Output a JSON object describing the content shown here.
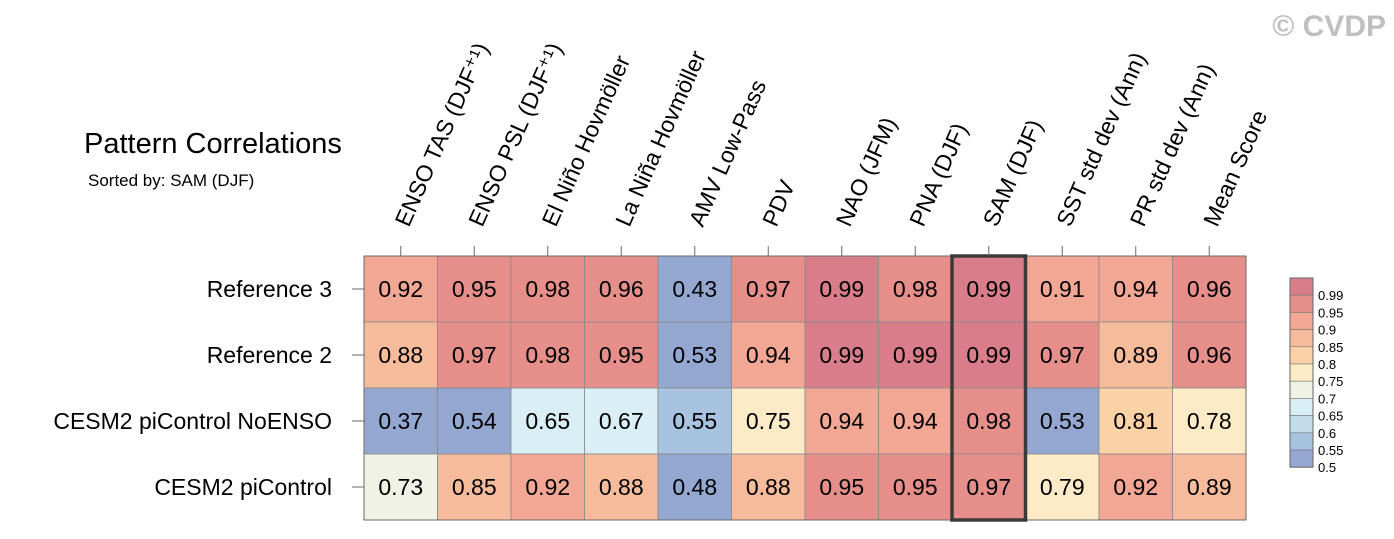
{
  "watermark": "© CVDP",
  "chart_data": {
    "type": "heatmap",
    "title": "Pattern Correlations",
    "subtitle": "Sorted by: SAM (DJF)",
    "highlight_column": "SAM (DJF)",
    "columns": [
      "ENSO TAS (DJF⁺¹)",
      "ENSO PSL (DJF⁺¹)",
      "El Niño Hovmöller",
      "La Niña Hovmöller",
      "AMV Low-Pass",
      "PDV",
      "NAO (JFM)",
      "PNA (DJF)",
      "SAM (DJF)",
      "SST std dev (Ann)",
      "PR std dev (Ann)",
      "Mean Score"
    ],
    "rows": [
      "Reference 3",
      "Reference 2",
      "CESM2 piControl NoENSO",
      "CESM2 piControl"
    ],
    "values": [
      [
        0.92,
        0.95,
        0.98,
        0.96,
        0.43,
        0.97,
        0.99,
        0.98,
        0.99,
        0.91,
        0.94,
        0.96
      ],
      [
        0.88,
        0.97,
        0.98,
        0.95,
        0.53,
        0.94,
        0.99,
        0.99,
        0.99,
        0.97,
        0.89,
        0.96
      ],
      [
        0.37,
        0.54,
        0.65,
        0.67,
        0.55,
        0.75,
        0.94,
        0.94,
        0.98,
        0.53,
        0.81,
        0.78
      ],
      [
        0.73,
        0.85,
        0.92,
        0.88,
        0.48,
        0.88,
        0.95,
        0.95,
        0.97,
        0.79,
        0.92,
        0.89
      ]
    ],
    "colorbar": {
      "levels": [
        "0.99",
        "0.95",
        "0.9",
        "0.85",
        "0.8",
        "0.75",
        "0.7",
        "0.65",
        "0.6",
        "0.55",
        "0.5"
      ],
      "colors": [
        "#d87d89",
        "#e68f8a",
        "#f2a795",
        "#f6bb9b",
        "#fbd2a5",
        "#fdeac6",
        "#f0f2e6",
        "#d9eef5",
        "#c2dcea",
        "#a8c3df",
        "#93a7d1"
      ]
    }
  }
}
